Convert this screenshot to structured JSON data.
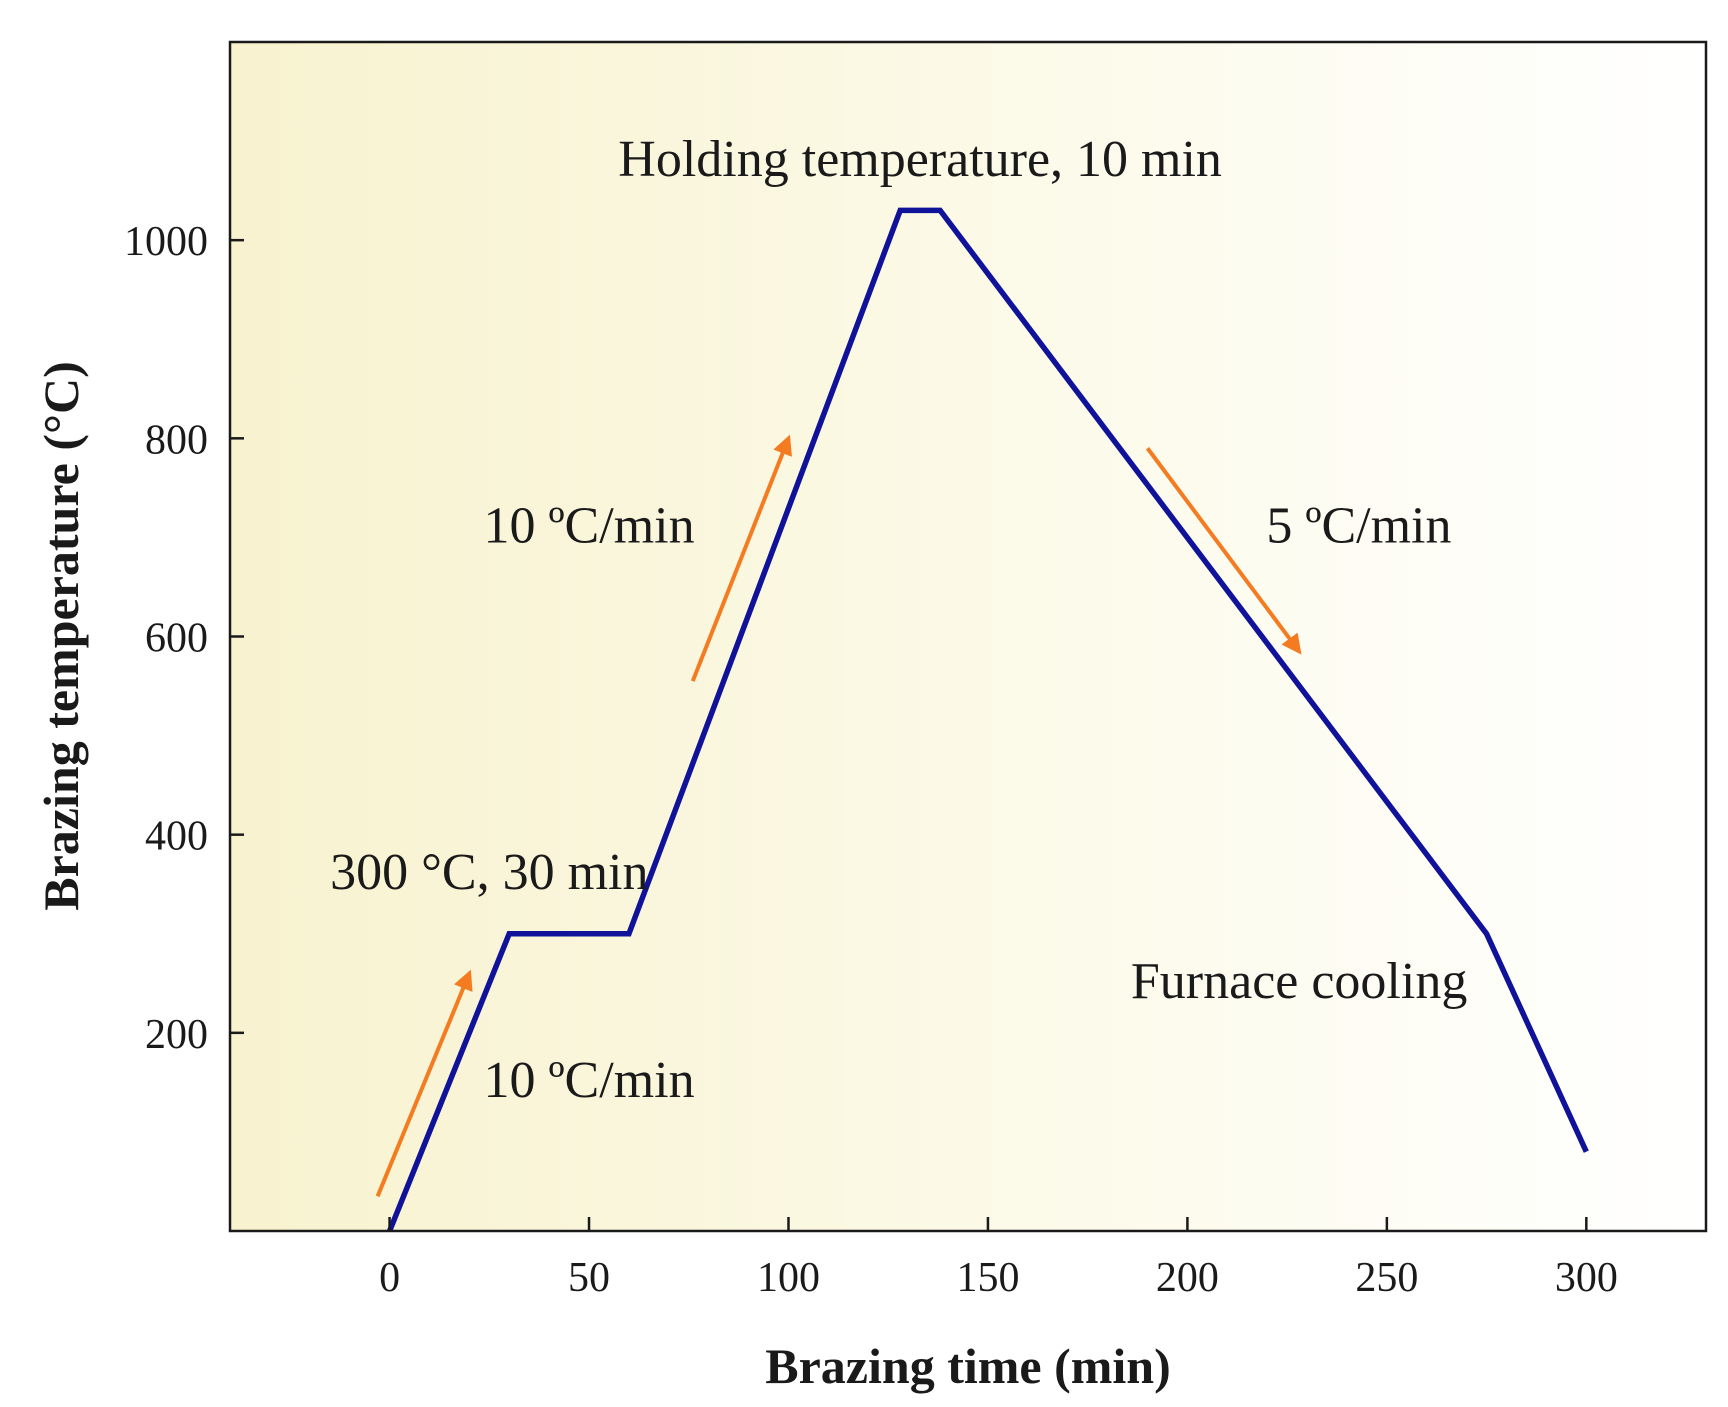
{
  "chart_data": {
    "type": "line",
    "title": "",
    "xlabel": "Brazing time (min)",
    "ylabel": "Brazing temperature (°C)",
    "xlim": [
      -40,
      330
    ],
    "ylim": [
      0,
      1200
    ],
    "xticks": [
      0,
      50,
      100,
      150,
      200,
      250,
      300
    ],
    "yticks": [
      200,
      400,
      600,
      800,
      1000
    ],
    "grid": false,
    "legend": "none",
    "series": [
      {
        "color": "#10139a",
        "x": [
          0,
          30,
          60,
          128,
          138,
          275,
          300
        ],
        "y": [
          0,
          300,
          300,
          1030,
          1030,
          300,
          80
        ]
      }
    ],
    "annotations": [
      {
        "text": "Holding temperature, 10 min",
        "x": 133,
        "y": 1065
      },
      {
        "text": "10 ºC/min",
        "x": 50,
        "y": 695
      },
      {
        "text": "5 ºC/min",
        "x": 243,
        "y": 695
      },
      {
        "text": "300 °C, 30 min",
        "x": 25,
        "y": 345
      },
      {
        "text": "10 ºC/min",
        "x": 50,
        "y": 135
      },
      {
        "text": "Furnace cooling",
        "x": 228,
        "y": 235
      }
    ],
    "arrows": [
      {
        "from": [
          -3,
          35
        ],
        "to": [
          20,
          260
        ],
        "color": "#f47b20"
      },
      {
        "from": [
          76,
          555
        ],
        "to": [
          100,
          800
        ],
        "color": "#f47b20"
      },
      {
        "from": [
          190,
          790
        ],
        "to": [
          228,
          585
        ],
        "color": "#f47b20"
      }
    ]
  }
}
